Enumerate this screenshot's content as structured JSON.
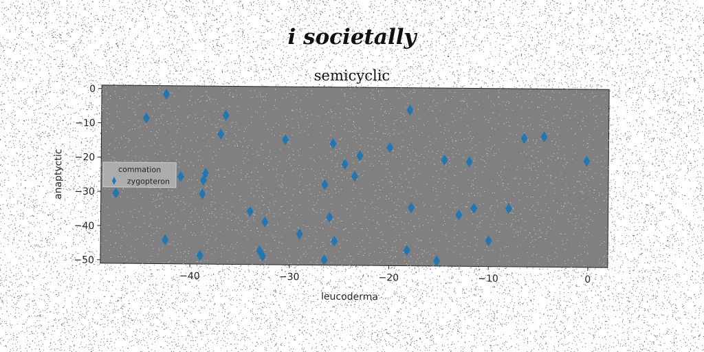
{
  "suptitle": "i societally",
  "chart_data": {
    "type": "scatter",
    "title": "semicyclic",
    "xlabel": "leucoderma",
    "ylabel": "anaptyctic",
    "xlim": [
      -49,
      2
    ],
    "ylim": [
      -51,
      1
    ],
    "xticks": [
      -40,
      -30,
      -20,
      -10,
      0
    ],
    "yticks": [
      0,
      -10,
      -20,
      -30,
      -40,
      -50
    ],
    "grid": false,
    "legend": {
      "title": "commation",
      "placement": "center-left"
    },
    "series": [
      {
        "name": "zygopteron",
        "marker": "thin-diamond",
        "color": "#1f77b4",
        "points": [
          {
            "x": -42.5,
            "y": -1.5
          },
          {
            "x": -44.5,
            "y": -8.5
          },
          {
            "x": -36.5,
            "y": -7.5
          },
          {
            "x": -37,
            "y": -13
          },
          {
            "x": -42.5,
            "y": -44
          },
          {
            "x": -41,
            "y": -25.5
          },
          {
            "x": -38.5,
            "y": -24.5
          },
          {
            "x": -38.7,
            "y": -26.5
          },
          {
            "x": -38.8,
            "y": -30.5
          },
          {
            "x": -39,
            "y": -48.5
          },
          {
            "x": -47.5,
            "y": -30.5
          },
          {
            "x": -34,
            "y": -35.5
          },
          {
            "x": -32.5,
            "y": -38.5
          },
          {
            "x": -33,
            "y": -47
          },
          {
            "x": -32.7,
            "y": -48.5
          },
          {
            "x": -30.5,
            "y": -14.5
          },
          {
            "x": -29,
            "y": -42
          },
          {
            "x": -26.5,
            "y": -49.5
          },
          {
            "x": -26,
            "y": -37
          },
          {
            "x": -25.5,
            "y": -44
          },
          {
            "x": -26.5,
            "y": -27.5
          },
          {
            "x": -25.7,
            "y": -15.5
          },
          {
            "x": -24.5,
            "y": -21.5
          },
          {
            "x": -23.5,
            "y": -25
          },
          {
            "x": -23,
            "y": -19
          },
          {
            "x": -20,
            "y": -16.5
          },
          {
            "x": -18,
            "y": -5.5
          },
          {
            "x": -17.8,
            "y": -34
          },
          {
            "x": -18.2,
            "y": -46.5
          },
          {
            "x": -15.2,
            "y": -49.5
          },
          {
            "x": -14.5,
            "y": -20
          },
          {
            "x": -13,
            "y": -36
          },
          {
            "x": -12,
            "y": -20.5
          },
          {
            "x": -11.5,
            "y": -34
          },
          {
            "x": -10,
            "y": -43.5
          },
          {
            "x": -8,
            "y": -34
          },
          {
            "x": -6.5,
            "y": -13.5
          },
          {
            "x": -4.5,
            "y": -13
          },
          {
            "x": -0.2,
            "y": -20
          }
        ]
      }
    ]
  }
}
